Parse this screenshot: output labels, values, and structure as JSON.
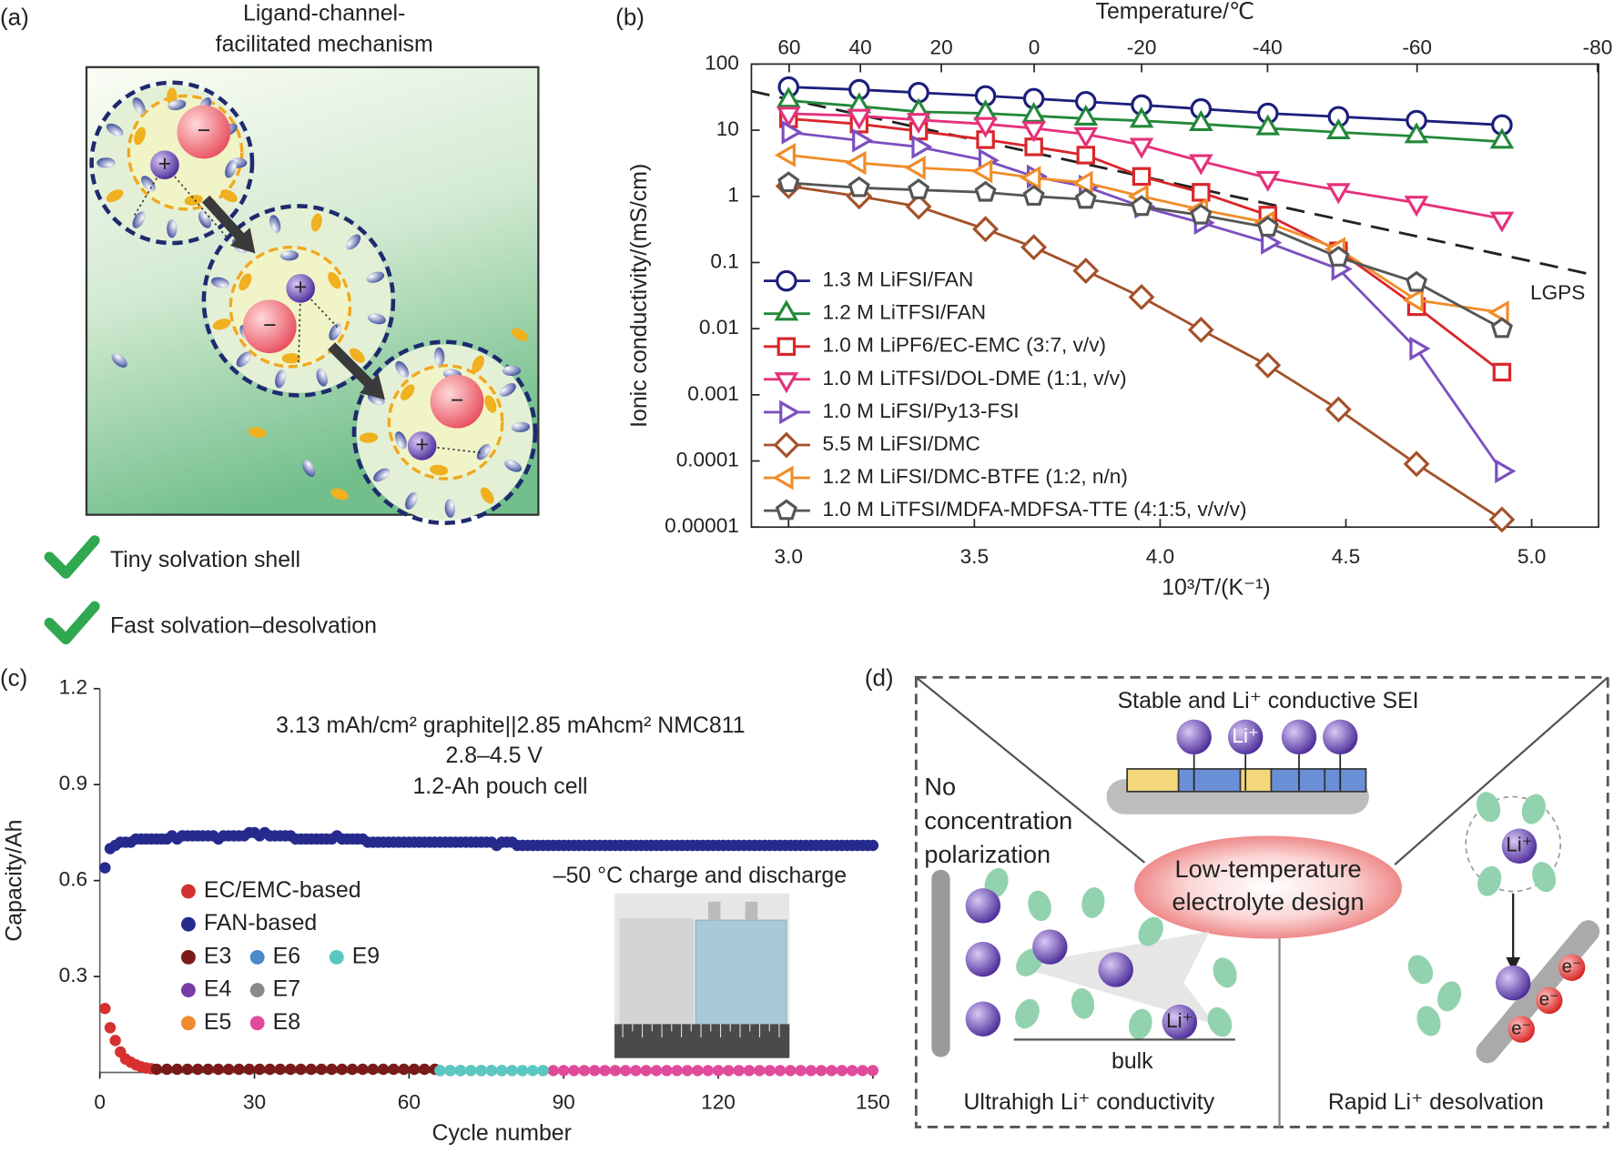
{
  "panel_a": {
    "label": "(a)",
    "title": [
      "Ligand-channel-",
      "facilitated mechanism"
    ],
    "anion_sign": "−",
    "cation_sign": "+",
    "checks": [
      "Tiny solvation shell",
      "Fast solvation–desolvation"
    ]
  },
  "chart_data": [
    {
      "type": "line",
      "label": "(b)",
      "xlabel": "10³/T/(K⁻¹)",
      "ylabel": "Ionic conductivity/(mS/cm)",
      "x2label": "Temperature/℃",
      "xlim": [
        2.9,
        5.18
      ],
      "xticks": [
        {
          "value": 3,
          "label": "3.0"
        },
        3.5,
        {
          "value": 4,
          "label": "4.0"
        },
        4.5,
        {
          "value": 5,
          "label": "5.0"
        }
      ],
      "x2scale": "reciprocal-kelvin",
      "x2ticks": [
        60,
        40,
        20,
        0,
        -20,
        -40,
        -60,
        -80
      ],
      "ylim": [
        1e-05,
        100
      ],
      "yscale": "log",
      "yticks": [
        100,
        10,
        1,
        0.1,
        0.01,
        0.001,
        0.0001,
        1e-05
      ],
      "legend": "lower left",
      "x": [
        3,
        3.19,
        3.35,
        3.53,
        3.66,
        3.8,
        3.95,
        4.11,
        4.29,
        4.48,
        4.69,
        4.92
      ],
      "series": [
        {
          "name": "1.3 M LiFSI/FAN",
          "color": "#1c1f7a",
          "marker": "circle",
          "values": [
            45,
            41,
            37,
            33,
            30,
            27,
            24,
            21,
            18,
            16,
            14,
            12
          ]
        },
        {
          "name": "1.2 M LiTFSI/FAN",
          "color": "#23883a",
          "marker": "triangle-up",
          "values": [
            28,
            23,
            19,
            18,
            16.5,
            15,
            13.9,
            12.4,
            10.7,
            9.3,
            8.1,
            6.7
          ]
        },
        {
          "name": "1.0 M LiPF6/EC-EMC (3:7, v/v)",
          "color": "#d9262b",
          "marker": "square",
          "values": [
            14.9,
            12.4,
            9.7,
            7.2,
            5.6,
            4.2,
            2,
            1.15,
            0.52,
            0.15,
            0.0215,
            0.0022
          ]
        },
        {
          "name": "1.0 M LiTFSI/DOL-DME (1:1, v/v)",
          "color": "#e5317a",
          "marker": "triangle-down",
          "values": [
            17.8,
            16.5,
            14.3,
            12.4,
            10.7,
            8.7,
            6,
            3.4,
            1.9,
            1.24,
            0.8,
            0.46
          ]
        },
        {
          "name": "1.0 M LiFSI/Py13-FSI",
          "color": "#7b4fc0",
          "marker": "triangle-right",
          "values": [
            9.3,
            7,
            5.6,
            3.5,
            2,
            1.4,
            0.7,
            0.4,
            0.2,
            0.08,
            0.005,
            7e-05
          ]
        },
        {
          "name": "5.5 M LiFSI/DMC",
          "color": "#a4512a",
          "marker": "diamond",
          "values": [
            1.43,
            1,
            0.7,
            0.32,
            0.17,
            0.075,
            0.03,
            0.0096,
            0.0028,
            0.0006,
            9e-05,
            1.3e-05
          ]
        },
        {
          "name": "1.2 M LiFSI/DMC-BTFE (1:2, n/n)",
          "color": "#f08c28",
          "marker": "triangle-left",
          "values": [
            4.2,
            3.2,
            2.7,
            2.4,
            1.9,
            1.6,
            1,
            0.63,
            0.4,
            0.16,
            0.027,
            0.0175
          ]
        },
        {
          "name": "1.0 M LiTFSI/MDFA-MDFSA-TTE (4:1:5, v/v/v)",
          "color": "#555555",
          "marker": "pentagon",
          "values": [
            1.6,
            1.35,
            1.25,
            1.15,
            1,
            0.9,
            0.7,
            0.52,
            0.34,
            0.12,
            0.05,
            0.01
          ]
        }
      ],
      "reference": {
        "name": "LGPS",
        "color": "#222222",
        "x": [
          2.9,
          5.15
        ],
        "values": [
          39,
          0.068
        ]
      }
    },
    {
      "type": "scatter",
      "label": "(c)",
      "xlabel": "Cycle number",
      "ylabel": "Capacity/Ah",
      "xlim": [
        0,
        150
      ],
      "xticks": [
        0,
        30,
        60,
        90,
        120,
        150
      ],
      "ylim": [
        0,
        1.2
      ],
      "yticks": [
        0.3,
        0.6,
        0.9,
        1.2
      ],
      "annotations": [
        "3.13 mAh/cm² graphite||2.85 mAhcm² NMC811",
        "2.8–4.5 V",
        "1.2-Ah pouch cell",
        "–50 °C charge and discharge"
      ],
      "legend": "left",
      "series": [
        {
          "name": "EC/EMC-based",
          "color": "#d63030",
          "x": [
            1,
            2,
            3,
            4,
            5,
            6,
            7,
            8,
            9,
            10
          ],
          "values": [
            0.2,
            0.14,
            0.1,
            0.064,
            0.042,
            0.032,
            0.024,
            0.018,
            0.014,
            0.012
          ]
        },
        {
          "name": "FAN-based",
          "color": "#262a8c",
          "x": [
            1,
            2,
            3,
            4,
            5,
            6,
            7,
            8,
            9,
            10,
            11,
            12,
            13,
            14,
            15,
            16,
            17,
            18,
            19,
            20,
            21,
            22,
            23,
            24,
            25,
            26,
            27,
            28,
            29,
            30,
            31,
            32,
            33,
            34,
            35,
            36,
            37,
            38,
            39,
            40,
            41,
            42,
            43,
            44,
            45,
            46,
            47,
            48,
            49,
            50,
            51,
            52,
            53,
            54,
            55,
            56,
            57,
            58,
            59,
            60,
            61,
            62,
            63,
            64,
            65,
            66,
            67,
            68,
            69,
            70,
            71,
            72,
            73,
            74,
            75,
            76,
            77,
            78,
            79,
            80,
            81,
            82,
            83,
            84,
            85,
            86,
            87,
            88,
            89,
            90,
            91,
            92,
            93,
            94,
            95,
            96,
            97,
            98,
            99,
            100,
            101,
            102,
            103,
            104,
            105,
            106,
            107,
            108,
            109,
            110,
            111,
            112,
            113,
            114,
            115,
            116,
            117,
            118,
            119,
            120,
            121,
            122,
            123,
            124,
            125,
            126,
            127,
            128,
            129,
            130,
            131,
            132,
            133,
            134,
            135,
            136,
            137,
            138,
            139,
            140,
            141,
            142,
            143,
            144,
            145,
            146,
            147,
            148,
            149,
            150
          ],
          "values": [
            0.64,
            0.7,
            0.71,
            0.72,
            0.72,
            0.72,
            0.73,
            0.73,
            0.73,
            0.73,
            0.73,
            0.73,
            0.73,
            0.74,
            0.73,
            0.74,
            0.74,
            0.74,
            0.74,
            0.74,
            0.74,
            0.74,
            0.73,
            0.74,
            0.74,
            0.74,
            0.74,
            0.74,
            0.75,
            0.75,
            0.74,
            0.75,
            0.74,
            0.74,
            0.74,
            0.74,
            0.74,
            0.73,
            0.73,
            0.73,
            0.73,
            0.73,
            0.73,
            0.73,
            0.73,
            0.74,
            0.73,
            0.73,
            0.73,
            0.73,
            0.73,
            0.72,
            0.72,
            0.72,
            0.72,
            0.72,
            0.72,
            0.72,
            0.72,
            0.72,
            0.72,
            0.72,
            0.72,
            0.72,
            0.72,
            0.72,
            0.72,
            0.72,
            0.72,
            0.72,
            0.72,
            0.72,
            0.72,
            0.72,
            0.72,
            0.72,
            0.71,
            0.72,
            0.72,
            0.72,
            0.71,
            0.71,
            0.71,
            0.71,
            0.71,
            0.71,
            0.71,
            0.71,
            0.71,
            0.71,
            0.71,
            0.71,
            0.71,
            0.71,
            0.71,
            0.71,
            0.71,
            0.71,
            0.71,
            0.71,
            0.71,
            0.71,
            0.71,
            0.71,
            0.71,
            0.71,
            0.71,
            0.71,
            0.71,
            0.71,
            0.71,
            0.71,
            0.71,
            0.71,
            0.71,
            0.71,
            0.71,
            0.71,
            0.71,
            0.71,
            0.71,
            0.71,
            0.71,
            0.71,
            0.71,
            0.71,
            0.71,
            0.71,
            0.71,
            0.71,
            0.71,
            0.71,
            0.71,
            0.71,
            0.71,
            0.71,
            0.71,
            0.71,
            0.71,
            0.71,
            0.71,
            0.71,
            0.71,
            0.71,
            0.71,
            0.71,
            0.71,
            0.71,
            0.71,
            0.71
          ]
        },
        {
          "name": "E3",
          "color": "#7a1a1a",
          "x": [
            11,
            13,
            15,
            17,
            19,
            21,
            23,
            25,
            27,
            29,
            31,
            33,
            35,
            37,
            39,
            41,
            43,
            45,
            47,
            49,
            51,
            53,
            55,
            57,
            59,
            61,
            63,
            65
          ],
          "values": [
            0.01,
            0.01,
            0.01,
            0.01,
            0.01,
            0.01,
            0.01,
            0.01,
            0.01,
            0.01,
            0.01,
            0.01,
            0.01,
            0.01,
            0.01,
            0.01,
            0.01,
            0.01,
            0.01,
            0.01,
            0.01,
            0.01,
            0.01,
            0.01,
            0.01,
            0.01,
            0.01,
            0.01
          ]
        },
        {
          "name": "E4",
          "color": "#7a3aa8",
          "x": [
            66,
            68,
            70
          ],
          "values": [
            0.006,
            0.006,
            0.006
          ]
        },
        {
          "name": "E5",
          "color": "#f08a30",
          "x": [
            70,
            72,
            74
          ],
          "values": [
            0.006,
            0.006,
            0.006
          ]
        },
        {
          "name": "E6",
          "color": "#4a8ac8",
          "x": [
            74,
            76,
            78
          ],
          "values": [
            0.006,
            0.006,
            0.006
          ]
        },
        {
          "name": "E7",
          "color": "#8a8a8a",
          "x": [
            78,
            80,
            82
          ],
          "values": [
            0.006,
            0.006,
            0.006
          ]
        },
        {
          "name": "E8",
          "color": "#e04a9a",
          "x": [
            86,
            88,
            90,
            92,
            94,
            96,
            98,
            100,
            102,
            104,
            106,
            108,
            110,
            112,
            114,
            116,
            118,
            120,
            122,
            124,
            126,
            128,
            130,
            132,
            134,
            136,
            138,
            140,
            142,
            144,
            146,
            148,
            150
          ],
          "values": [
            0.006,
            0.006,
            0.006,
            0.006,
            0.006,
            0.006,
            0.006,
            0.006,
            0.006,
            0.006,
            0.006,
            0.006,
            0.006,
            0.006,
            0.006,
            0.006,
            0.006,
            0.006,
            0.006,
            0.006,
            0.006,
            0.006,
            0.006,
            0.006,
            0.006,
            0.006,
            0.006,
            0.006,
            0.006,
            0.006,
            0.006,
            0.006,
            0.006
          ]
        },
        {
          "name": "E9",
          "color": "#5ac8c0",
          "x": [
            66,
            68,
            70,
            72,
            74,
            76,
            78,
            80,
            82,
            84,
            86
          ],
          "values": [
            0.006,
            0.006,
            0.006,
            0.006,
            0.006,
            0.006,
            0.006,
            0.006,
            0.006,
            0.006,
            0.006
          ]
        }
      ]
    }
  ],
  "panel_d": {
    "label": "(d)",
    "sei_title": "Stable and Li⁺ conductive SEI",
    "left_note": [
      "No",
      "concentration",
      "polarization"
    ],
    "center": [
      "Low-temperature",
      "electrolyte design"
    ],
    "bulk": "bulk",
    "bottom_left": "Ultrahigh Li⁺ conductivity",
    "bottom_right": "Rapid Li⁺ desolvation",
    "li_label": "Li⁺",
    "e_label": "e⁻"
  }
}
